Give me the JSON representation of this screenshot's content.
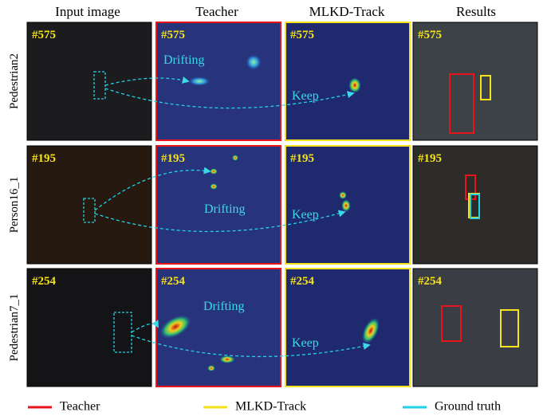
{
  "columns": [
    "Input image",
    "Teacher",
    "MLKD-Track",
    "Results"
  ],
  "rows": [
    {
      "label": "Pedestrian2",
      "frame": "#575",
      "teacher_note": "Drifting",
      "student_note": "Keep"
    },
    {
      "label": "Person16_1",
      "frame": "#195",
      "teacher_note": "Drifting",
      "student_note": "Keep"
    },
    {
      "label": "Pedestrian7_1",
      "frame": "#254",
      "teacher_note": "Drifting",
      "student_note": "Keep"
    }
  ],
  "legend": [
    {
      "label": "Teacher",
      "color": "#e8141c"
    },
    {
      "label": "MLKD-Track",
      "color": "#f5e21a"
    },
    {
      "label": "Ground truth",
      "color": "#22d3e6"
    }
  ]
}
